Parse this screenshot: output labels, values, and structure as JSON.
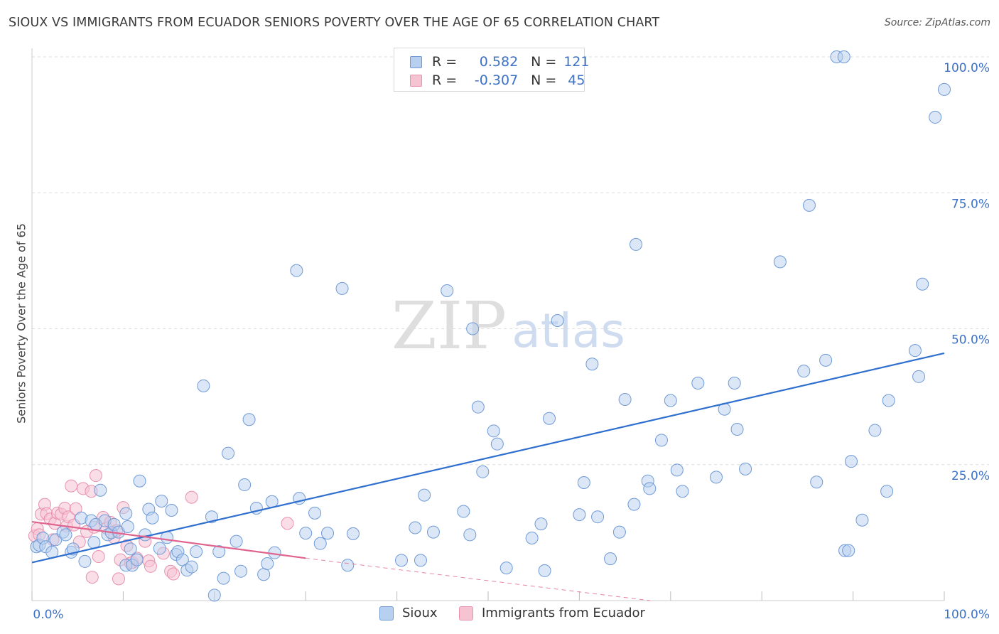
{
  "title": "SIOUX VS IMMIGRANTS FROM ECUADOR SENIORS POVERTY OVER THE AGE OF 65 CORRELATION CHART",
  "source": "Source: ZipAtlas.com",
  "watermark": {
    "zip": "ZIP",
    "atlas": "atlas"
  },
  "legend_top": {
    "rows": [
      {
        "r_label": "R =",
        "r_value": "0.582",
        "n_label": "N =",
        "n_value": "121"
      },
      {
        "r_label": "R =",
        "r_value": "-0.307",
        "n_label": "N =",
        "n_value": "45"
      }
    ]
  },
  "colors": {
    "sioux_fill": "#b8d0f0",
    "sioux_stroke": "#6f9ad6",
    "sioux_line": "#2f6fcf",
    "ecuador_fill": "#f6c3d3",
    "ecuador_stroke": "#e890ad",
    "ecuador_line": "#e0648e",
    "axis_label": "#3d72c8",
    "grid": "#dddddd"
  },
  "chart_data": {
    "type": "scatter",
    "title": "SIOUX VS IMMIGRANTS FROM ECUADOR SENIORS POVERTY OVER THE AGE OF 65 CORRELATION CHART",
    "xlabel": "",
    "ylabel": "Seniors Poverty Over the Age of 65",
    "xlim": [
      0,
      100
    ],
    "ylim": [
      0,
      105
    ],
    "x_tick_labels": [
      "0.0%",
      "100.0%"
    ],
    "y_ticks": [
      25,
      50,
      75,
      100
    ],
    "y_tick_labels": [
      "25.0%",
      "50.0%",
      "75.0%",
      "100.0%"
    ],
    "grid": true,
    "legend": "bottom-center",
    "series": [
      {
        "name": "Sioux",
        "r": 0.582,
        "n": 121,
        "trend": {
          "x": [
            0,
            100
          ],
          "y": [
            7,
            45.5
          ]
        },
        "points": [
          [
            0.5,
            9.9
          ],
          [
            0.8,
            10.2
          ],
          [
            1.2,
            11.5
          ],
          [
            1.5,
            9.9
          ],
          [
            2.2,
            8.9
          ],
          [
            2.6,
            11.2
          ],
          [
            3.4,
            12.6
          ],
          [
            3.7,
            12.1
          ],
          [
            4.3,
            8.9
          ],
          [
            4.5,
            9.5
          ],
          [
            5.4,
            15.2
          ],
          [
            5.8,
            7.2
          ],
          [
            6.5,
            14.7
          ],
          [
            6.8,
            10.7
          ],
          [
            7.0,
            14.0
          ],
          [
            7.5,
            20.3
          ],
          [
            8.0,
            14.7
          ],
          [
            8.3,
            12.1
          ],
          [
            8.7,
            12.5
          ],
          [
            9.0,
            14.0
          ],
          [
            9.5,
            12.6
          ],
          [
            10.3,
            6.5
          ],
          [
            10.3,
            16.0
          ],
          [
            10.5,
            13.6
          ],
          [
            10.8,
            9.5
          ],
          [
            11.0,
            6.5
          ],
          [
            11.5,
            7.5
          ],
          [
            11.8,
            22.0
          ],
          [
            12.4,
            12.1
          ],
          [
            12.8,
            16.8
          ],
          [
            13.2,
            15.2
          ],
          [
            14.0,
            9.6
          ],
          [
            14.2,
            18.3
          ],
          [
            14.8,
            11.6
          ],
          [
            15.3,
            16.6
          ],
          [
            15.8,
            8.5
          ],
          [
            16.0,
            9.0
          ],
          [
            16.5,
            7.5
          ],
          [
            17.0,
            5.6
          ],
          [
            17.5,
            6.2
          ],
          [
            18.0,
            9.0
          ],
          [
            18.8,
            39.5
          ],
          [
            19.7,
            15.4
          ],
          [
            20.0,
            1.0
          ],
          [
            20.5,
            9.0
          ],
          [
            21.0,
            4.1
          ],
          [
            21.5,
            27.1
          ],
          [
            22.4,
            10.9
          ],
          [
            22.9,
            5.4
          ],
          [
            23.3,
            21.3
          ],
          [
            23.8,
            33.3
          ],
          [
            24.6,
            17.0
          ],
          [
            25.4,
            4.8
          ],
          [
            25.8,
            6.8
          ],
          [
            26.3,
            18.2
          ],
          [
            26.6,
            8.8
          ],
          [
            29.0,
            60.7
          ],
          [
            29.3,
            18.8
          ],
          [
            30.0,
            12.4
          ],
          [
            31.0,
            16.1
          ],
          [
            31.6,
            10.5
          ],
          [
            32.4,
            12.4
          ],
          [
            34.0,
            57.4
          ],
          [
            34.6,
            6.5
          ],
          [
            35.2,
            12.3
          ],
          [
            40.5,
            7.4
          ],
          [
            42.0,
            13.4
          ],
          [
            42.6,
            7.4
          ],
          [
            43.0,
            19.4
          ],
          [
            44.0,
            12.6
          ],
          [
            45.5,
            57.0
          ],
          [
            47.3,
            16.4
          ],
          [
            48.0,
            12.1
          ],
          [
            48.3,
            50.0
          ],
          [
            48.9,
            35.6
          ],
          [
            49.4,
            23.7
          ],
          [
            50.6,
            31.2
          ],
          [
            51.0,
            28.8
          ],
          [
            52.0,
            6.0
          ],
          [
            54.8,
            11.5
          ],
          [
            55.8,
            14.1
          ],
          [
            56.2,
            5.5
          ],
          [
            56.7,
            33.5
          ],
          [
            57.6,
            51.5
          ],
          [
            60.0,
            15.8
          ],
          [
            60.5,
            21.7
          ],
          [
            61.4,
            43.5
          ],
          [
            62.0,
            15.4
          ],
          [
            63.4,
            7.7
          ],
          [
            64.4,
            12.6
          ],
          [
            65.0,
            37.0
          ],
          [
            66.0,
            17.7
          ],
          [
            66.2,
            65.5
          ],
          [
            67.5,
            22.0
          ],
          [
            67.7,
            20.6
          ],
          [
            69.0,
            29.5
          ],
          [
            70.0,
            36.8
          ],
          [
            70.7,
            24.0
          ],
          [
            71.3,
            20.1
          ],
          [
            73.0,
            40.0
          ],
          [
            75.0,
            22.7
          ],
          [
            75.9,
            35.2
          ],
          [
            77.0,
            40.0
          ],
          [
            77.3,
            31.5
          ],
          [
            78.2,
            24.2
          ],
          [
            82.0,
            62.3
          ],
          [
            84.6,
            42.2
          ],
          [
            85.2,
            72.7
          ],
          [
            86.0,
            21.8
          ],
          [
            87.0,
            44.2
          ],
          [
            88.2,
            100.0
          ],
          [
            89.0,
            100.0
          ],
          [
            89.1,
            9.2
          ],
          [
            89.5,
            9.2
          ],
          [
            89.8,
            25.6
          ],
          [
            91.0,
            14.8
          ],
          [
            92.4,
            31.3
          ],
          [
            93.7,
            20.1
          ],
          [
            93.9,
            36.8
          ],
          [
            96.8,
            46.0
          ],
          [
            97.2,
            41.2
          ],
          [
            97.6,
            58.2
          ],
          [
            99.0,
            88.9
          ],
          [
            100.0,
            94.0
          ]
        ]
      },
      {
        "name": "Immigrants from Ecuador",
        "r": -0.307,
        "n": 45,
        "trend": {
          "x": [
            0,
            30
          ],
          "y": [
            14.5,
            7.8
          ]
        },
        "trend_extension": {
          "x": [
            30,
            75
          ],
          "y": [
            7.8,
            -2.3
          ]
        },
        "points": [
          [
            0.3,
            11.9
          ],
          [
            0.6,
            13.2
          ],
          [
            0.8,
            12.1
          ],
          [
            1.0,
            15.9
          ],
          [
            1.4,
            17.7
          ],
          [
            1.6,
            16.0
          ],
          [
            2.0,
            15.0
          ],
          [
            2.3,
            11.2
          ],
          [
            2.5,
            14.2
          ],
          [
            2.8,
            16.1
          ],
          [
            3.2,
            15.9
          ],
          [
            3.6,
            17.0
          ],
          [
            3.8,
            13.7
          ],
          [
            4.0,
            15.4
          ],
          [
            4.3,
            21.1
          ],
          [
            4.6,
            13.9
          ],
          [
            4.8,
            16.9
          ],
          [
            5.2,
            10.8
          ],
          [
            5.6,
            20.6
          ],
          [
            6.0,
            12.7
          ],
          [
            6.5,
            20.1
          ],
          [
            6.6,
            4.3
          ],
          [
            6.8,
            13.5
          ],
          [
            7.0,
            23.0
          ],
          [
            7.3,
            8.1
          ],
          [
            7.8,
            15.3
          ],
          [
            8.2,
            13.3
          ],
          [
            8.6,
            14.4
          ],
          [
            9.0,
            11.6
          ],
          [
            9.3,
            12.9
          ],
          [
            9.5,
            4.0
          ],
          [
            9.7,
            7.5
          ],
          [
            10.0,
            17.1
          ],
          [
            10.4,
            10.1
          ],
          [
            10.8,
            6.9
          ],
          [
            11.0,
            7.0
          ],
          [
            11.5,
            7.8
          ],
          [
            12.4,
            10.9
          ],
          [
            12.8,
            7.3
          ],
          [
            13.0,
            6.3
          ],
          [
            14.4,
            8.7
          ],
          [
            15.2,
            5.4
          ],
          [
            15.5,
            4.9
          ],
          [
            17.5,
            19.0
          ],
          [
            28.0,
            14.2
          ]
        ]
      }
    ]
  },
  "legend_bottom": {
    "series1": "Sioux",
    "series2": "Immigrants from Ecuador"
  }
}
